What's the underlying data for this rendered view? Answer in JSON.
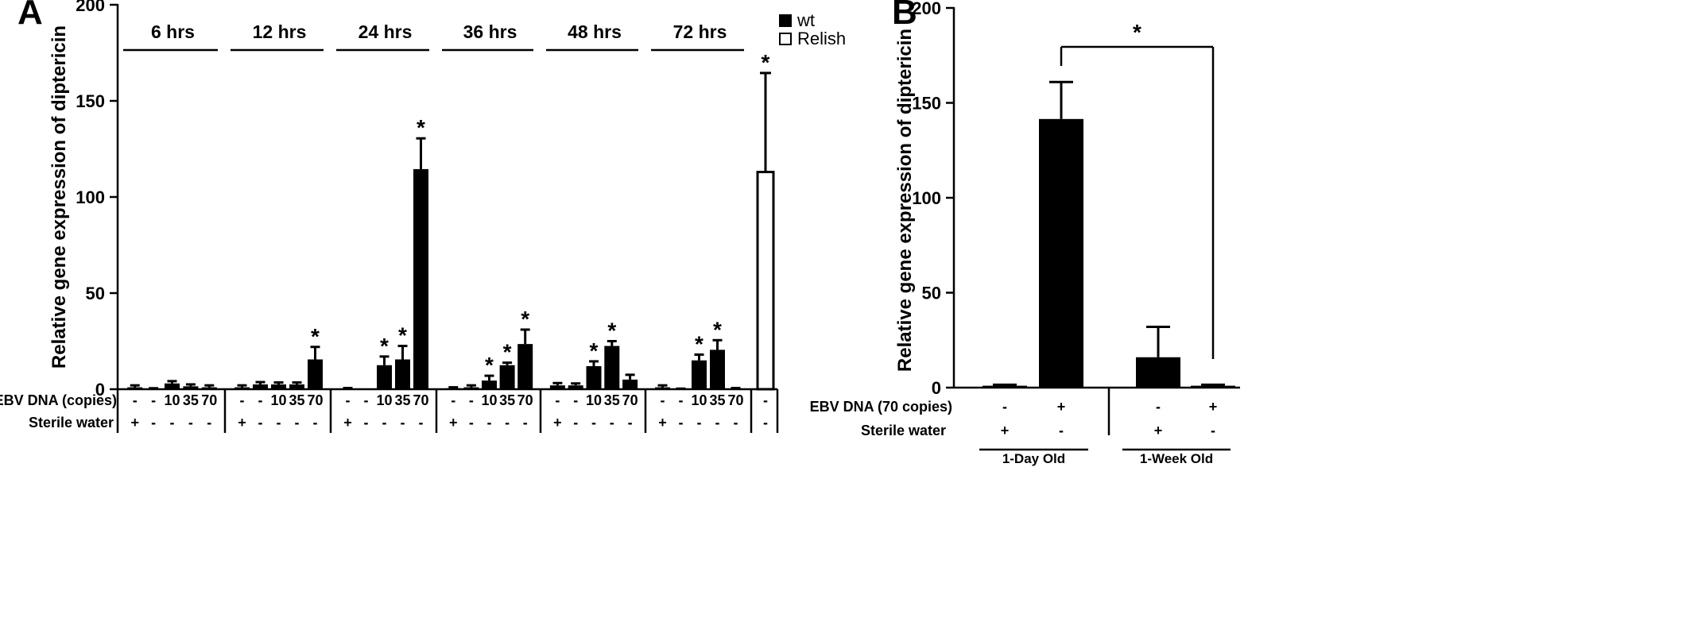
{
  "chart_data": [
    {
      "panel": "A",
      "type": "bar",
      "ylabel": "Relative gene expression of diptericin",
      "ylim": [
        0,
        200
      ],
      "yticks": [
        "0",
        "50",
        "100",
        "150",
        "200"
      ],
      "legend": [
        {
          "name": "wt",
          "color": "#000000"
        },
        {
          "name": "Relish",
          "color": "#ffffff"
        }
      ],
      "row_labels": {
        "ebv": "EBV DNA (copies)",
        "water": "Sterile water"
      },
      "groups": [
        {
          "label": "6 hrs",
          "ebv": [
            "-",
            "-",
            "10",
            "35",
            "70"
          ],
          "water": [
            "+",
            "-",
            "-",
            "-",
            "-"
          ],
          "values": [
            1,
            0,
            3,
            1.5,
            1
          ],
          "errors": [
            1,
            0.5,
            1.2,
            1,
            1
          ],
          "sig": [
            false,
            false,
            false,
            false,
            false
          ]
        },
        {
          "label": "12 hrs",
          "ebv": [
            "-",
            "-",
            "10",
            "35",
            "70"
          ],
          "water": [
            "+",
            "-",
            "-",
            "-",
            "-"
          ],
          "values": [
            1,
            2.5,
            2.5,
            2.5,
            15.5
          ],
          "errors": [
            1,
            1.2,
            1,
            1,
            6.5
          ],
          "sig": [
            false,
            false,
            false,
            false,
            true
          ]
        },
        {
          "label": "24 hrs",
          "ebv": [
            "-",
            "-",
            "10",
            "35",
            "70"
          ],
          "water": [
            "+",
            "-",
            "-",
            "-",
            "-"
          ],
          "values": [
            0.3,
            0,
            12.5,
            15.5,
            114.5
          ],
          "errors": [
            0.3,
            0,
            4.5,
            7,
            16
          ],
          "sig": [
            false,
            false,
            true,
            true,
            true
          ]
        },
        {
          "label": "36 hrs",
          "ebv": [
            "-",
            "-",
            "10",
            "35",
            "70"
          ],
          "water": [
            "+",
            "-",
            "-",
            "-",
            "-"
          ],
          "values": [
            0.5,
            1,
            4.5,
            12.5,
            23.5
          ],
          "errors": [
            0.5,
            1,
            2.5,
            1.3,
            7.5
          ],
          "sig": [
            false,
            false,
            true,
            true,
            true
          ]
        },
        {
          "label": "48 hrs",
          "ebv": [
            "-",
            "-",
            "10",
            "35",
            "70"
          ],
          "water": [
            "+",
            "-",
            "-",
            "-",
            "-"
          ],
          "values": [
            2,
            2,
            12,
            22.5,
            5
          ],
          "errors": [
            1.2,
            1,
            2.5,
            2.5,
            2.5
          ],
          "sig": [
            false,
            false,
            true,
            true,
            false
          ]
        },
        {
          "label": "72 hrs",
          "ebv": [
            "-",
            "-",
            "10",
            "35",
            "70"
          ],
          "water": [
            "+",
            "-",
            "-",
            "-",
            "-"
          ],
          "values": [
            1,
            0,
            15,
            20.5,
            0.3
          ],
          "errors": [
            1,
            0.3,
            3,
            5,
            0.3
          ],
          "sig": [
            false,
            false,
            true,
            true,
            false
          ]
        }
      ],
      "relish_bar": {
        "series": "Relish",
        "ebv": "-",
        "water": "-",
        "value": 113,
        "error": 51.5,
        "sig": true
      }
    },
    {
      "panel": "B",
      "type": "bar",
      "ylabel": "Relative gene expression of diptericin",
      "ylim": [
        0,
        200
      ],
      "yticks": [
        "0",
        "50",
        "100",
        "150",
        "200"
      ],
      "row_labels": {
        "ebv": "EBV DNA (70 copies)",
        "water": "Sterile water"
      },
      "groups": [
        {
          "label": "1-Day Old",
          "ebv": [
            "-",
            "+"
          ],
          "water": [
            "+",
            "-"
          ],
          "values": [
            1,
            141.5
          ],
          "errors": [
            0.5,
            19.5
          ]
        },
        {
          "label": "1-Week Old",
          "ebv": [
            "-",
            "+"
          ],
          "water": [
            "+",
            "-"
          ],
          "values": [
            16,
            1
          ],
          "errors": [
            16,
            0.5
          ]
        }
      ],
      "significance": {
        "mark": "*",
        "between": [
          "1-Day Old EBV+",
          "1-Week Old EBV+"
        ]
      }
    }
  ]
}
